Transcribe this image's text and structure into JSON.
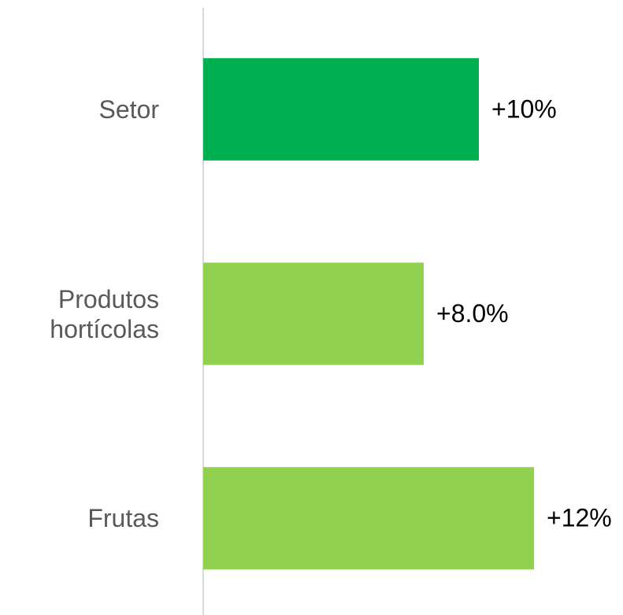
{
  "chart_data": {
    "type": "barh",
    "categories": [
      "Setor",
      "Produtos hortícolas",
      "Frutas"
    ],
    "values": [
      10,
      8,
      12
    ],
    "value_labels": [
      "+10%",
      "+8.0%",
      "+12%"
    ],
    "colors": [
      "#00b050",
      "#92d050",
      "#92d050"
    ],
    "xlim": [
      0,
      15
    ]
  }
}
